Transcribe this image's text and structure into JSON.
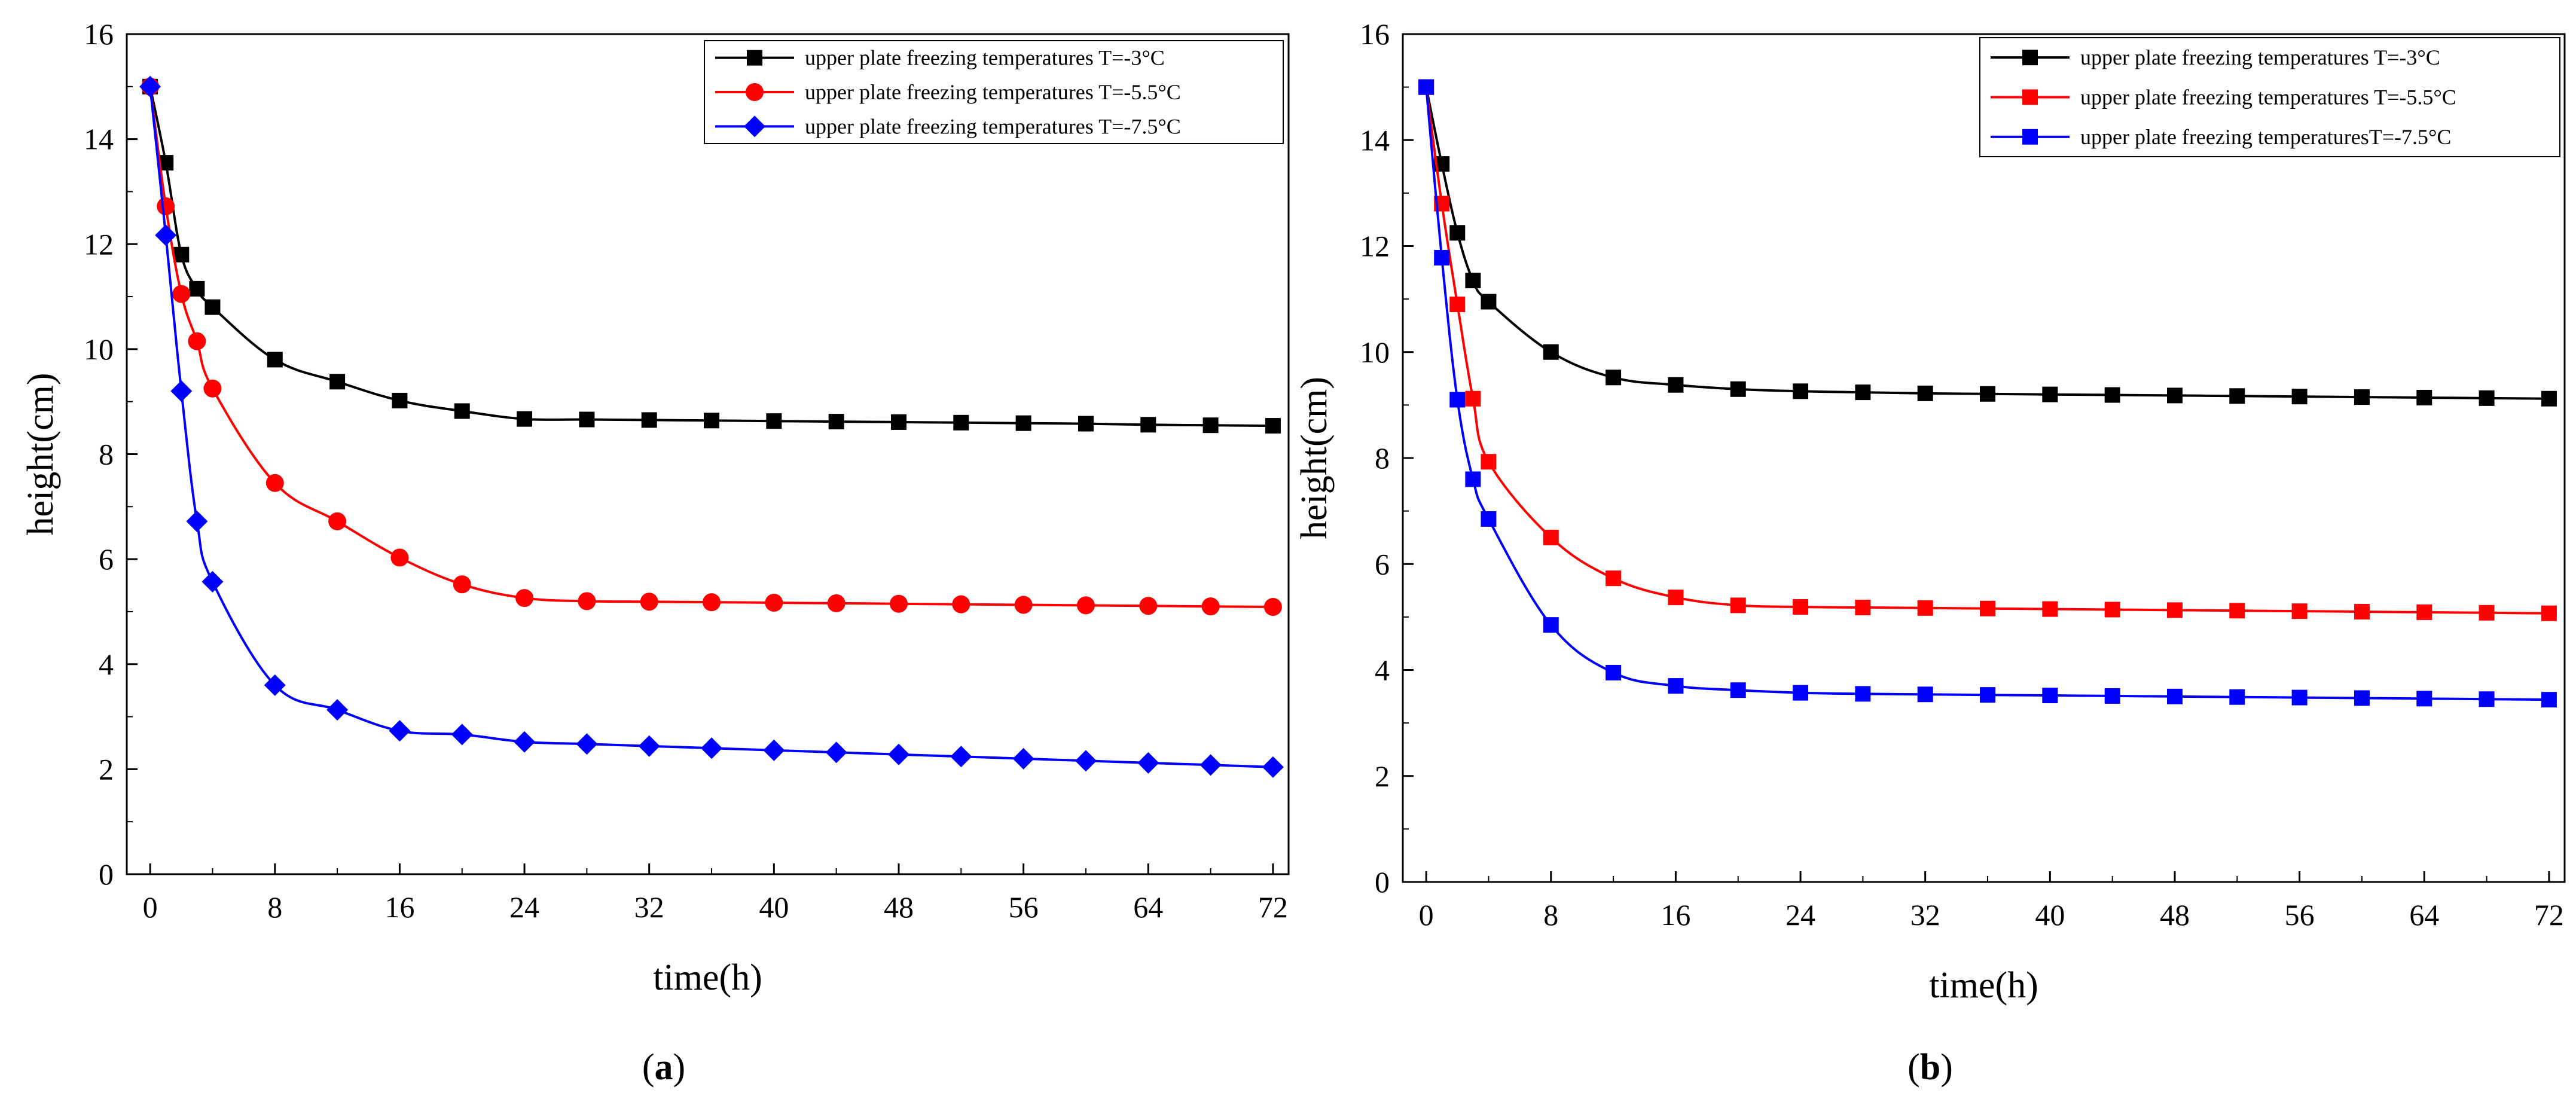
{
  "chart_data": [
    {
      "type": "line",
      "panel": "a",
      "caption_open": "(",
      "caption": "a",
      "caption_close": ")",
      "xlabel": "time(h)",
      "ylabel": "height(cm)",
      "xlim": [
        -1.5,
        73
      ],
      "ylim": [
        0,
        16
      ],
      "xticks": [
        0,
        8,
        16,
        24,
        32,
        40,
        48,
        56,
        64,
        72
      ],
      "yticks": [
        0,
        2,
        4,
        6,
        8,
        10,
        12,
        14,
        16
      ],
      "legend_position": "top-right",
      "series": [
        {
          "name": "upper plate freezing temperatures T=-3°C",
          "color": "#000000",
          "marker": "square",
          "x": [
            0,
            1,
            2,
            3,
            4,
            8,
            12,
            16,
            20,
            24,
            28,
            32,
            36,
            40,
            44,
            48,
            52,
            56,
            60,
            64,
            68,
            72
          ],
          "y": [
            15.0,
            13.55,
            11.8,
            11.15,
            10.8,
            9.8,
            9.38,
            9.02,
            8.82,
            8.67,
            8.66,
            8.65,
            8.64,
            8.63,
            8.62,
            8.61,
            8.6,
            8.59,
            8.58,
            8.56,
            8.55,
            8.54
          ]
        },
        {
          "name": "upper plate freezing temperatures T=-5.5°C",
          "color": "#ff0000",
          "marker": "circle",
          "x": [
            0,
            1,
            2,
            3,
            4,
            8,
            12,
            16,
            20,
            24,
            28,
            32,
            36,
            40,
            44,
            48,
            52,
            56,
            60,
            64,
            68,
            72
          ],
          "y": [
            15.0,
            12.72,
            11.05,
            10.15,
            9.25,
            7.45,
            6.72,
            6.03,
            5.52,
            5.26,
            5.2,
            5.19,
            5.18,
            5.17,
            5.16,
            5.15,
            5.14,
            5.13,
            5.12,
            5.11,
            5.1,
            5.09
          ]
        },
        {
          "name": "upper plate freezing temperatures T=-7.5°C",
          "color": "#0000ff",
          "marker": "diamond",
          "x": [
            0,
            1,
            2,
            3,
            4,
            8,
            12,
            16,
            20,
            24,
            28,
            32,
            36,
            40,
            44,
            48,
            52,
            56,
            60,
            64,
            68,
            72
          ],
          "y": [
            15.0,
            12.17,
            9.2,
            6.72,
            5.57,
            3.6,
            3.13,
            2.73,
            2.66,
            2.52,
            2.48,
            2.44,
            2.4,
            2.36,
            2.32,
            2.28,
            2.24,
            2.2,
            2.16,
            2.12,
            2.08,
            2.04
          ]
        }
      ]
    },
    {
      "type": "line",
      "panel": "b",
      "caption_open": "(",
      "caption": "b",
      "caption_close": ")",
      "xlabel": "time(h)",
      "ylabel": "height(cm)",
      "xlim": [
        -1.5,
        73
      ],
      "ylim": [
        0,
        16
      ],
      "xticks": [
        0,
        8,
        16,
        24,
        32,
        40,
        48,
        56,
        64,
        72
      ],
      "yticks": [
        0,
        2,
        4,
        6,
        8,
        10,
        12,
        14,
        16
      ],
      "legend_position": "top-right",
      "series": [
        {
          "name": "upper plate freezing temperatures T=-3°C",
          "color": "#000000",
          "marker": "square",
          "x": [
            0,
            1,
            2,
            3,
            4,
            8,
            12,
            16,
            20,
            24,
            28,
            32,
            36,
            40,
            44,
            48,
            52,
            56,
            60,
            64,
            68,
            72
          ],
          "y": [
            15.0,
            13.55,
            12.25,
            11.35,
            10.95,
            10.0,
            9.52,
            9.38,
            9.3,
            9.26,
            9.24,
            9.22,
            9.21,
            9.2,
            9.19,
            9.18,
            9.17,
            9.16,
            9.15,
            9.14,
            9.13,
            9.12
          ]
        },
        {
          "name": "upper plate freezing temperatures T=-5.5°C",
          "color": "#ff0000",
          "marker": "square",
          "x": [
            0,
            1,
            2,
            3,
            4,
            8,
            12,
            16,
            20,
            24,
            28,
            32,
            36,
            40,
            44,
            48,
            52,
            56,
            60,
            64,
            68,
            72
          ],
          "y": [
            15.0,
            12.8,
            10.9,
            9.12,
            7.93,
            6.5,
            5.73,
            5.37,
            5.22,
            5.19,
            5.18,
            5.17,
            5.16,
            5.15,
            5.14,
            5.13,
            5.12,
            5.11,
            5.1,
            5.09,
            5.08,
            5.07
          ]
        },
        {
          "name": "upper plate freezing temperaturesT=-7.5°C",
          "color": "#0000ff",
          "marker": "square",
          "x": [
            0,
            1,
            2,
            3,
            4,
            8,
            12,
            16,
            20,
            24,
            28,
            32,
            36,
            40,
            44,
            48,
            52,
            56,
            60,
            64,
            68,
            72
          ],
          "y": [
            15.0,
            11.78,
            9.1,
            7.6,
            6.85,
            4.85,
            3.95,
            3.7,
            3.62,
            3.57,
            3.55,
            3.54,
            3.53,
            3.52,
            3.51,
            3.5,
            3.49,
            3.48,
            3.47,
            3.46,
            3.45,
            3.44
          ]
        }
      ]
    }
  ]
}
